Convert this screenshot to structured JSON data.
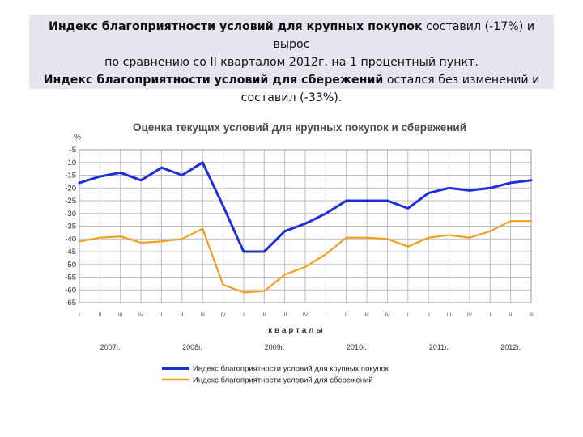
{
  "header": {
    "line1_bold": "Индекс благоприятности условий для крупных покупок",
    "line1_rest": " составил (-17%) и вырос",
    "line2": "по сравнению со II кварталом 2012г. на 1 процентный пункт.",
    "line3_bold": "Индекс благоприятности условий для сбережений",
    "line3_rest": " остался без изменений и",
    "line4": "составил (-33%)."
  },
  "chart_data": {
    "type": "line",
    "title": "Оценка текущих условий для крупных покупок и сбережений",
    "ylabel": "%",
    "xlabel": "к в а р т а л ы",
    "ylim": [
      -65,
      -5
    ],
    "yticks": [
      "-5",
      "-10",
      "-15",
      "-20",
      "-25",
      "-30",
      "-35",
      "-40",
      "-45",
      "-50",
      "-55",
      "-60",
      "-65"
    ],
    "x": [
      "I",
      "II",
      "III",
      "IV",
      "I",
      "II",
      "III",
      "IV",
      "I",
      "II",
      "III",
      "IV",
      "I",
      "II",
      "III",
      "IV",
      "I",
      "II",
      "III",
      "IV",
      "I",
      "II",
      "III"
    ],
    "year_groups": [
      {
        "label": "2007г.",
        "start": 0,
        "end": 3
      },
      {
        "label": "2008г.",
        "start": 4,
        "end": 7
      },
      {
        "label": "2009г.",
        "start": 8,
        "end": 11
      },
      {
        "label": "2010г.",
        "start": 12,
        "end": 15
      },
      {
        "label": "2011г.",
        "start": 16,
        "end": 19
      },
      {
        "label": "2012г.",
        "start": 20,
        "end": 22
      }
    ],
    "grid": true,
    "legend_position": "bottom",
    "series": [
      {
        "name": "Индекс благоприятности условий для крупных покупок",
        "color": "#1f2fd6",
        "values": [
          -18,
          -15.5,
          -14,
          -17,
          -12,
          -15,
          -10,
          -27,
          -45,
          -45,
          -37,
          -34,
          -30,
          -25,
          -25,
          -25,
          -28,
          -22,
          -20,
          -21,
          -20,
          -18,
          -17
        ]
      },
      {
        "name": "Индекс благоприятности условий для сбережений",
        "color": "#f0a020",
        "values": [
          -41,
          -39.5,
          -39,
          -41.5,
          -41,
          -40,
          -36,
          -58,
          -61,
          -60.5,
          -54,
          -51,
          -46,
          -39.5,
          -39.5,
          -40,
          -43,
          -39.5,
          -38.5,
          -39.5,
          -37,
          -33,
          -33
        ]
      }
    ]
  }
}
